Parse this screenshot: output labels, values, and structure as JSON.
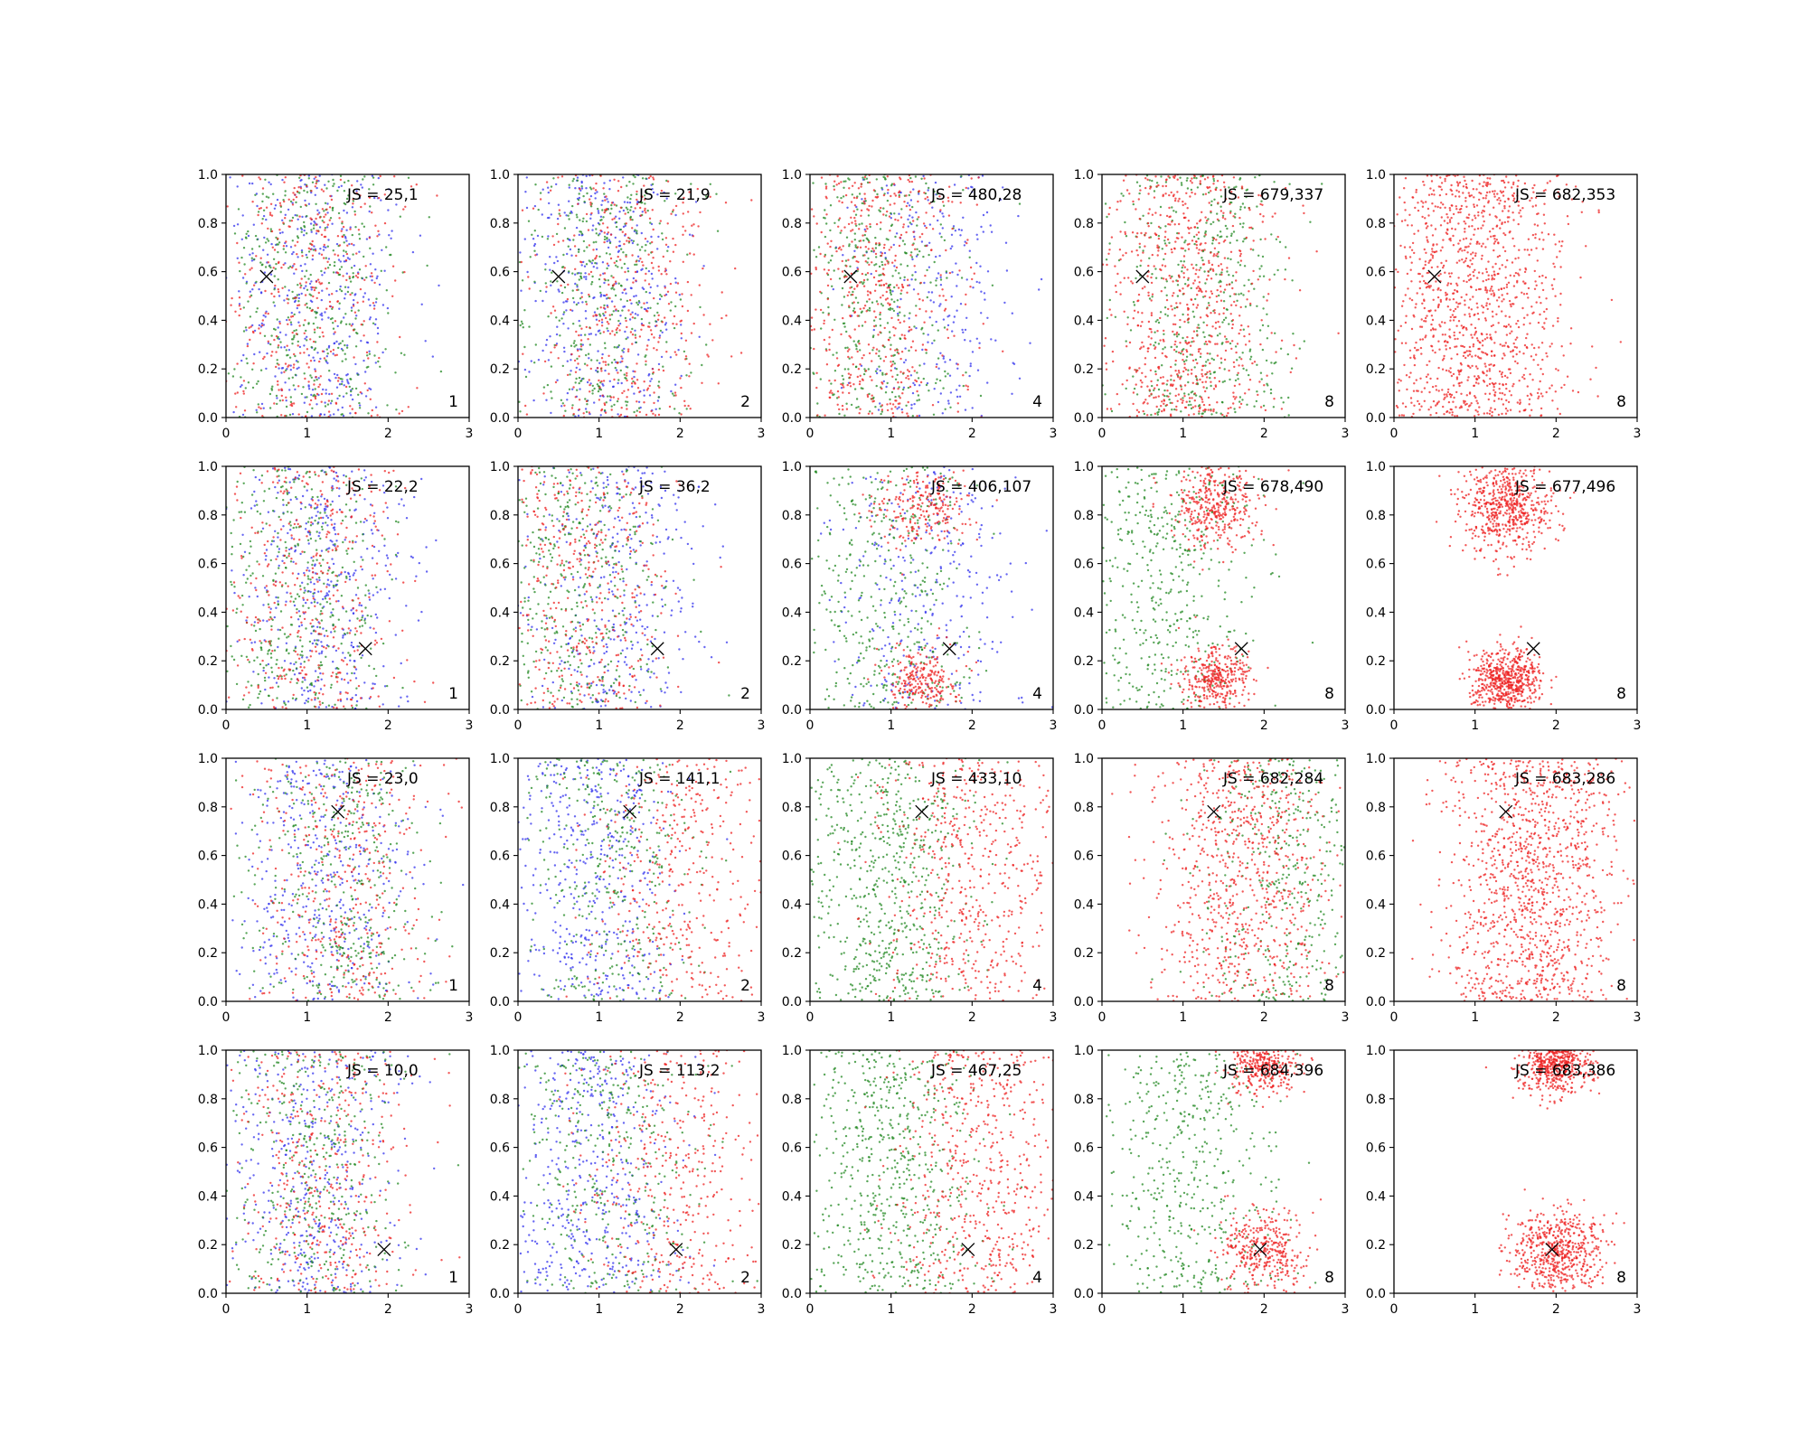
{
  "chart_data": {
    "type": "scatter",
    "grid": false,
    "layout": {
      "rows": 4,
      "cols": 5
    },
    "xlim": [
      0,
      3
    ],
    "ylim": [
      0,
      1
    ],
    "xticks": [
      "0",
      "1",
      "2",
      "3"
    ],
    "yticks": [
      "0.0",
      "0.2",
      "0.4",
      "0.6",
      "0.8",
      "1.0"
    ],
    "series_colors": {
      "blue": "#3333ee",
      "green": "#228822",
      "red": "#ee2222"
    },
    "marker_color": "#000000",
    "rows": [
      {
        "marker": [
          0.5,
          0.58
        ],
        "panels": [
          {
            "js_label": "JS = 25,1",
            "corner_label": "1",
            "mix": {
              "red": 0.33,
              "green": 0.33,
              "blue": 0.34
            },
            "red_clusters": [],
            "red_center": [
              1.0,
              0.5
            ],
            "green_center": [
              1.0,
              0.5
            ],
            "blue_center": [
              1.1,
              0.5
            ]
          },
          {
            "js_label": "JS = 21,9",
            "corner_label": "2",
            "mix": {
              "red": 0.35,
              "green": 0.33,
              "blue": 0.32
            },
            "red_clusters": [],
            "red_center": [
              1.3,
              0.5
            ],
            "green_center": [
              1.0,
              0.5
            ],
            "blue_center": [
              1.1,
              0.5
            ]
          },
          {
            "js_label": "JS = 480,28",
            "corner_label": "4",
            "mix": {
              "red": 0.45,
              "green": 0.35,
              "blue": 0.2
            },
            "red_clusters": [],
            "red_center": [
              0.8,
              0.5
            ],
            "green_center": [
              0.8,
              0.5
            ],
            "blue_center": [
              1.5,
              0.5
            ]
          },
          {
            "js_label": "JS = 679,337",
            "corner_label": "8",
            "mix": {
              "red": 0.62,
              "green": 0.38,
              "blue": 0
            },
            "red_clusters": [],
            "red_center": [
              1.05,
              0.55
            ],
            "green_center": [
              1.25,
              0.5
            ],
            "blue_center": [
              1.5,
              0.5
            ]
          },
          {
            "js_label": "JS = 682,353",
            "corner_label": "8",
            "mix": {
              "red": 1,
              "green": 0,
              "blue": 0
            },
            "red_clusters": [],
            "red_center": [
              1.0,
              0.6
            ],
            "green_center": [
              1.0,
              0.5
            ],
            "blue_center": [
              1.5,
              0.5
            ]
          }
        ]
      },
      {
        "marker": [
          1.72,
          0.25
        ],
        "panels": [
          {
            "js_label": "JS = 22,2",
            "corner_label": "1",
            "mix": {
              "red": 0.33,
              "green": 0.33,
              "blue": 0.34
            },
            "red_clusters": [],
            "red_center": [
              1.0,
              0.45
            ],
            "green_center": [
              0.9,
              0.5
            ],
            "blue_center": [
              1.2,
              0.5
            ]
          },
          {
            "js_label": "JS = 36,2",
            "corner_label": "2",
            "mix": {
              "red": 0.34,
              "green": 0.36,
              "blue": 0.3
            },
            "red_clusters": [],
            "red_center": [
              0.8,
              0.5
            ],
            "green_center": [
              0.7,
              0.5
            ],
            "blue_center": [
              1.2,
              0.5
            ]
          },
          {
            "js_label": "JS = 406,107",
            "corner_label": "4",
            "mix": {
              "red": 0.4,
              "green": 0.35,
              "blue": 0.25
            },
            "red_clusters": [
              [
                1.4,
                0.85
              ],
              [
                1.4,
                0.12
              ]
            ],
            "red_center": [
              1.4,
              0.5
            ],
            "green_center": [
              0.9,
              0.5
            ],
            "blue_center": [
              1.5,
              0.5
            ]
          },
          {
            "js_label": "JS = 678,490",
            "corner_label": "8",
            "mix": {
              "red": 0.6,
              "green": 0.4,
              "blue": 0
            },
            "red_clusters": [
              [
                1.4,
                0.83
              ],
              [
                1.4,
                0.12
              ]
            ],
            "red_center": [
              1.4,
              0.5
            ],
            "green_center": [
              0.8,
              0.45
            ],
            "blue_center": [
              1.5,
              0.5
            ]
          },
          {
            "js_label": "JS = 677,496",
            "corner_label": "8",
            "mix": {
              "red": 1,
              "green": 0,
              "blue": 0
            },
            "red_clusters": [
              [
                1.4,
                0.83
              ],
              [
                1.4,
                0.12
              ]
            ],
            "red_center": [
              1.4,
              0.5
            ],
            "green_center": [
              0.8,
              0.5
            ],
            "blue_center": [
              1.5,
              0.5
            ]
          }
        ]
      },
      {
        "marker": [
          1.38,
          0.78
        ],
        "panels": [
          {
            "js_label": "JS = 23,0",
            "corner_label": "1",
            "mix": {
              "red": 0.33,
              "green": 0.33,
              "blue": 0.34
            },
            "red_clusters": [],
            "red_center": [
              1.4,
              0.5
            ],
            "green_center": [
              1.4,
              0.5
            ],
            "blue_center": [
              1.2,
              0.5
            ]
          },
          {
            "js_label": "JS = 141,1",
            "corner_label": "2",
            "mix": {
              "red": 0.33,
              "green": 0.3,
              "blue": 0.37
            },
            "red_clusters": [],
            "red_center": [
              2.0,
              0.5
            ],
            "green_center": [
              1.1,
              0.5
            ],
            "blue_center": [
              0.9,
              0.5
            ]
          },
          {
            "js_label": "JS = 433,10",
            "corner_label": "4",
            "mix": {
              "red": 0.45,
              "green": 0.55,
              "blue": 0
            },
            "red_clusters": [],
            "red_center": [
              2.0,
              0.5
            ],
            "green_center": [
              1.0,
              0.5
            ],
            "blue_center": [
              1.0,
              0.5
            ]
          },
          {
            "js_label": "JS = 682,284",
            "corner_label": "8",
            "mix": {
              "red": 0.65,
              "green": 0.35,
              "blue": 0
            },
            "red_clusters": [],
            "red_center": [
              1.7,
              0.5
            ],
            "green_center": [
              2.3,
              0.5
            ],
            "blue_center": [
              1.0,
              0.5
            ]
          },
          {
            "js_label": "JS = 683,286",
            "corner_label": "8",
            "mix": {
              "red": 1,
              "green": 0,
              "blue": 0
            },
            "red_clusters": [],
            "red_center": [
              1.7,
              0.5
            ],
            "green_center": [
              2.0,
              0.5
            ],
            "blue_center": [
              1.0,
              0.5
            ]
          }
        ]
      },
      {
        "marker": [
          1.95,
          0.18
        ],
        "panels": [
          {
            "js_label": "JS = 10,0",
            "corner_label": "1",
            "mix": {
              "red": 0.33,
              "green": 0.33,
              "blue": 0.34
            },
            "red_clusters": [],
            "red_center": [
              1.2,
              0.5
            ],
            "green_center": [
              1.1,
              0.5
            ],
            "blue_center": [
              1.1,
              0.5
            ]
          },
          {
            "js_label": "JS = 113,2",
            "corner_label": "2",
            "mix": {
              "red": 0.33,
              "green": 0.3,
              "blue": 0.37
            },
            "red_clusters": [],
            "red_center": [
              1.9,
              0.5
            ],
            "green_center": [
              1.1,
              0.5
            ],
            "blue_center": [
              0.9,
              0.5
            ]
          },
          {
            "js_label": "JS = 467,25",
            "corner_label": "4",
            "mix": {
              "red": 0.48,
              "green": 0.52,
              "blue": 0
            },
            "red_clusters": [],
            "red_center": [
              2.1,
              0.5
            ],
            "green_center": [
              1.0,
              0.5
            ],
            "blue_center": [
              1.0,
              0.5
            ]
          },
          {
            "js_label": "JS = 684,396",
            "corner_label": "8",
            "mix": {
              "red": 0.6,
              "green": 0.4,
              "blue": 0
            },
            "red_clusters": [
              [
                2.0,
                0.16
              ],
              [
                2.0,
                0.95
              ]
            ],
            "red_center": [
              2.0,
              0.3
            ],
            "green_center": [
              1.1,
              0.5
            ],
            "blue_center": [
              1.0,
              0.5
            ]
          },
          {
            "js_label": "JS = 683,386",
            "corner_label": "8",
            "mix": {
              "red": 1,
              "green": 0,
              "blue": 0
            },
            "red_clusters": [
              [
                2.0,
                0.16
              ],
              [
                2.0,
                0.95
              ]
            ],
            "red_center": [
              2.0,
              0.3
            ],
            "green_center": [
              1.0,
              0.5
            ],
            "blue_center": [
              1.0,
              0.5
            ]
          }
        ]
      }
    ]
  }
}
